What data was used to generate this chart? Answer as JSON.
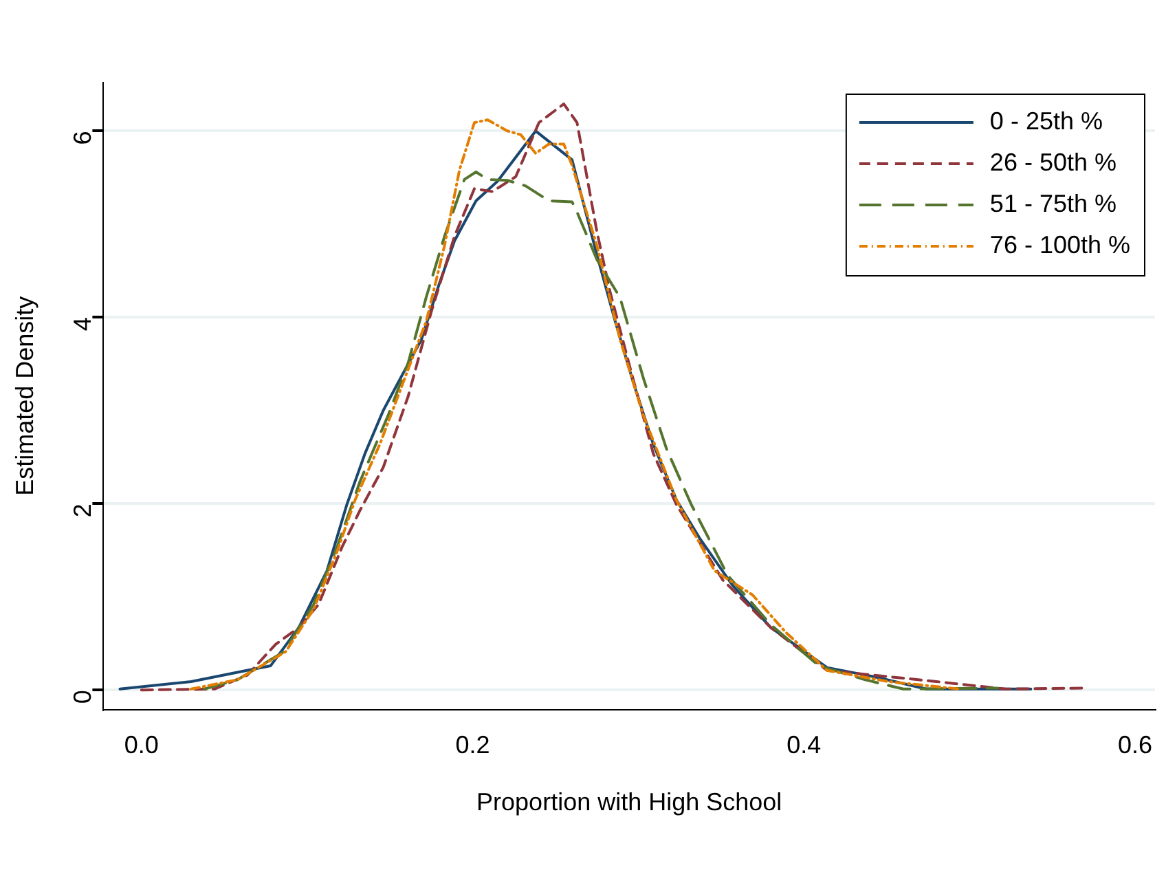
{
  "chart_data": {
    "type": "line",
    "xlabel": "Proportion with High School",
    "ylabel": "Estimated Density",
    "xlim": [
      -0.023,
      0.612
    ],
    "xticks": [
      {
        "value": 0,
        "label": "0.0"
      },
      0.2,
      0.4,
      0.6
    ],
    "ylim": [
      -0.21,
      6.52
    ],
    "yticks": [
      0,
      2,
      4,
      6
    ],
    "grid": "y",
    "legend": "top right",
    "marker": "none",
    "series": [
      {
        "name": "0 - 25th %",
        "color": "#1a476f",
        "line_style": "solid",
        "x": [
          -0.013,
          0.03,
          0.061,
          0.078,
          0.095,
          0.112,
          0.124,
          0.135,
          0.146,
          0.158,
          0.169,
          0.18,
          0.189,
          0.202,
          0.215,
          0.238,
          0.26,
          0.275,
          0.286,
          0.297,
          0.309,
          0.323,
          0.337,
          0.357,
          0.38,
          0.414,
          0.443,
          0.474,
          0.537
        ],
        "values": [
          0.01,
          0.09,
          0.2,
          0.26,
          0.67,
          1.28,
          1.99,
          2.54,
          3.0,
          3.4,
          3.76,
          4.37,
          4.82,
          5.25,
          5.46,
          6.0,
          5.69,
          4.67,
          3.96,
          3.3,
          2.64,
          2.04,
          1.63,
          1.12,
          0.67,
          0.24,
          0.14,
          0.01,
          0.01
        ]
      },
      {
        "name": "26 - 50th %",
        "color": "#90353b",
        "line_style": "dashed",
        "x": [
          0.0,
          0.044,
          0.064,
          0.081,
          0.095,
          0.107,
          0.121,
          0.132,
          0.146,
          0.161,
          0.175,
          0.189,
          0.201,
          0.212,
          0.226,
          0.24,
          0.255,
          0.263,
          0.275,
          0.283,
          0.295,
          0.309,
          0.323,
          0.351,
          0.38,
          0.414,
          0.48,
          0.522,
          0.568
        ],
        "values": [
          0.0,
          0.01,
          0.16,
          0.49,
          0.67,
          0.92,
          1.53,
          1.93,
          2.39,
          3.15,
          4.06,
          4.87,
          5.38,
          5.35,
          5.51,
          6.09,
          6.29,
          6.09,
          4.92,
          4.27,
          3.46,
          2.54,
          1.99,
          1.18,
          0.67,
          0.21,
          0.09,
          0.01,
          0.02
        ]
      },
      {
        "name": "51 - 75th %",
        "color": "#55752f",
        "line_style": "longdash",
        "x": [
          0.038,
          0.058,
          0.086,
          0.104,
          0.118,
          0.132,
          0.149,
          0.161,
          0.172,
          0.183,
          0.195,
          0.202,
          0.209,
          0.221,
          0.232,
          0.246,
          0.26,
          0.263,
          0.275,
          0.289,
          0.303,
          0.317,
          0.332,
          0.354,
          0.38,
          0.409,
          0.437,
          0.46,
          0.517
        ],
        "values": [
          0.01,
          0.11,
          0.41,
          0.92,
          1.53,
          2.24,
          2.95,
          3.51,
          4.22,
          4.87,
          5.48,
          5.56,
          5.48,
          5.47,
          5.41,
          5.25,
          5.24,
          5.13,
          4.62,
          4.21,
          3.35,
          2.59,
          1.99,
          1.23,
          0.7,
          0.26,
          0.11,
          0.01,
          0.02
        ]
      },
      {
        "name": "76 - 100th %",
        "color": "#e37e00",
        "line_style": "dashdot",
        "x": [
          0.03,
          0.058,
          0.087,
          0.104,
          0.118,
          0.129,
          0.144,
          0.158,
          0.172,
          0.183,
          0.192,
          0.201,
          0.209,
          0.221,
          0.229,
          0.238,
          0.246,
          0.255,
          0.26,
          0.275,
          0.289,
          0.303,
          0.323,
          0.346,
          0.369,
          0.389,
          0.414,
          0.451,
          0.494
        ],
        "values": [
          0.01,
          0.11,
          0.41,
          0.87,
          1.48,
          2.04,
          2.64,
          3.3,
          3.96,
          4.77,
          5.58,
          6.09,
          6.12,
          6.0,
          5.96,
          5.76,
          5.86,
          5.86,
          5.63,
          4.77,
          3.76,
          2.95,
          2.04,
          1.28,
          1.02,
          0.62,
          0.21,
          0.09,
          0.01
        ]
      }
    ]
  }
}
